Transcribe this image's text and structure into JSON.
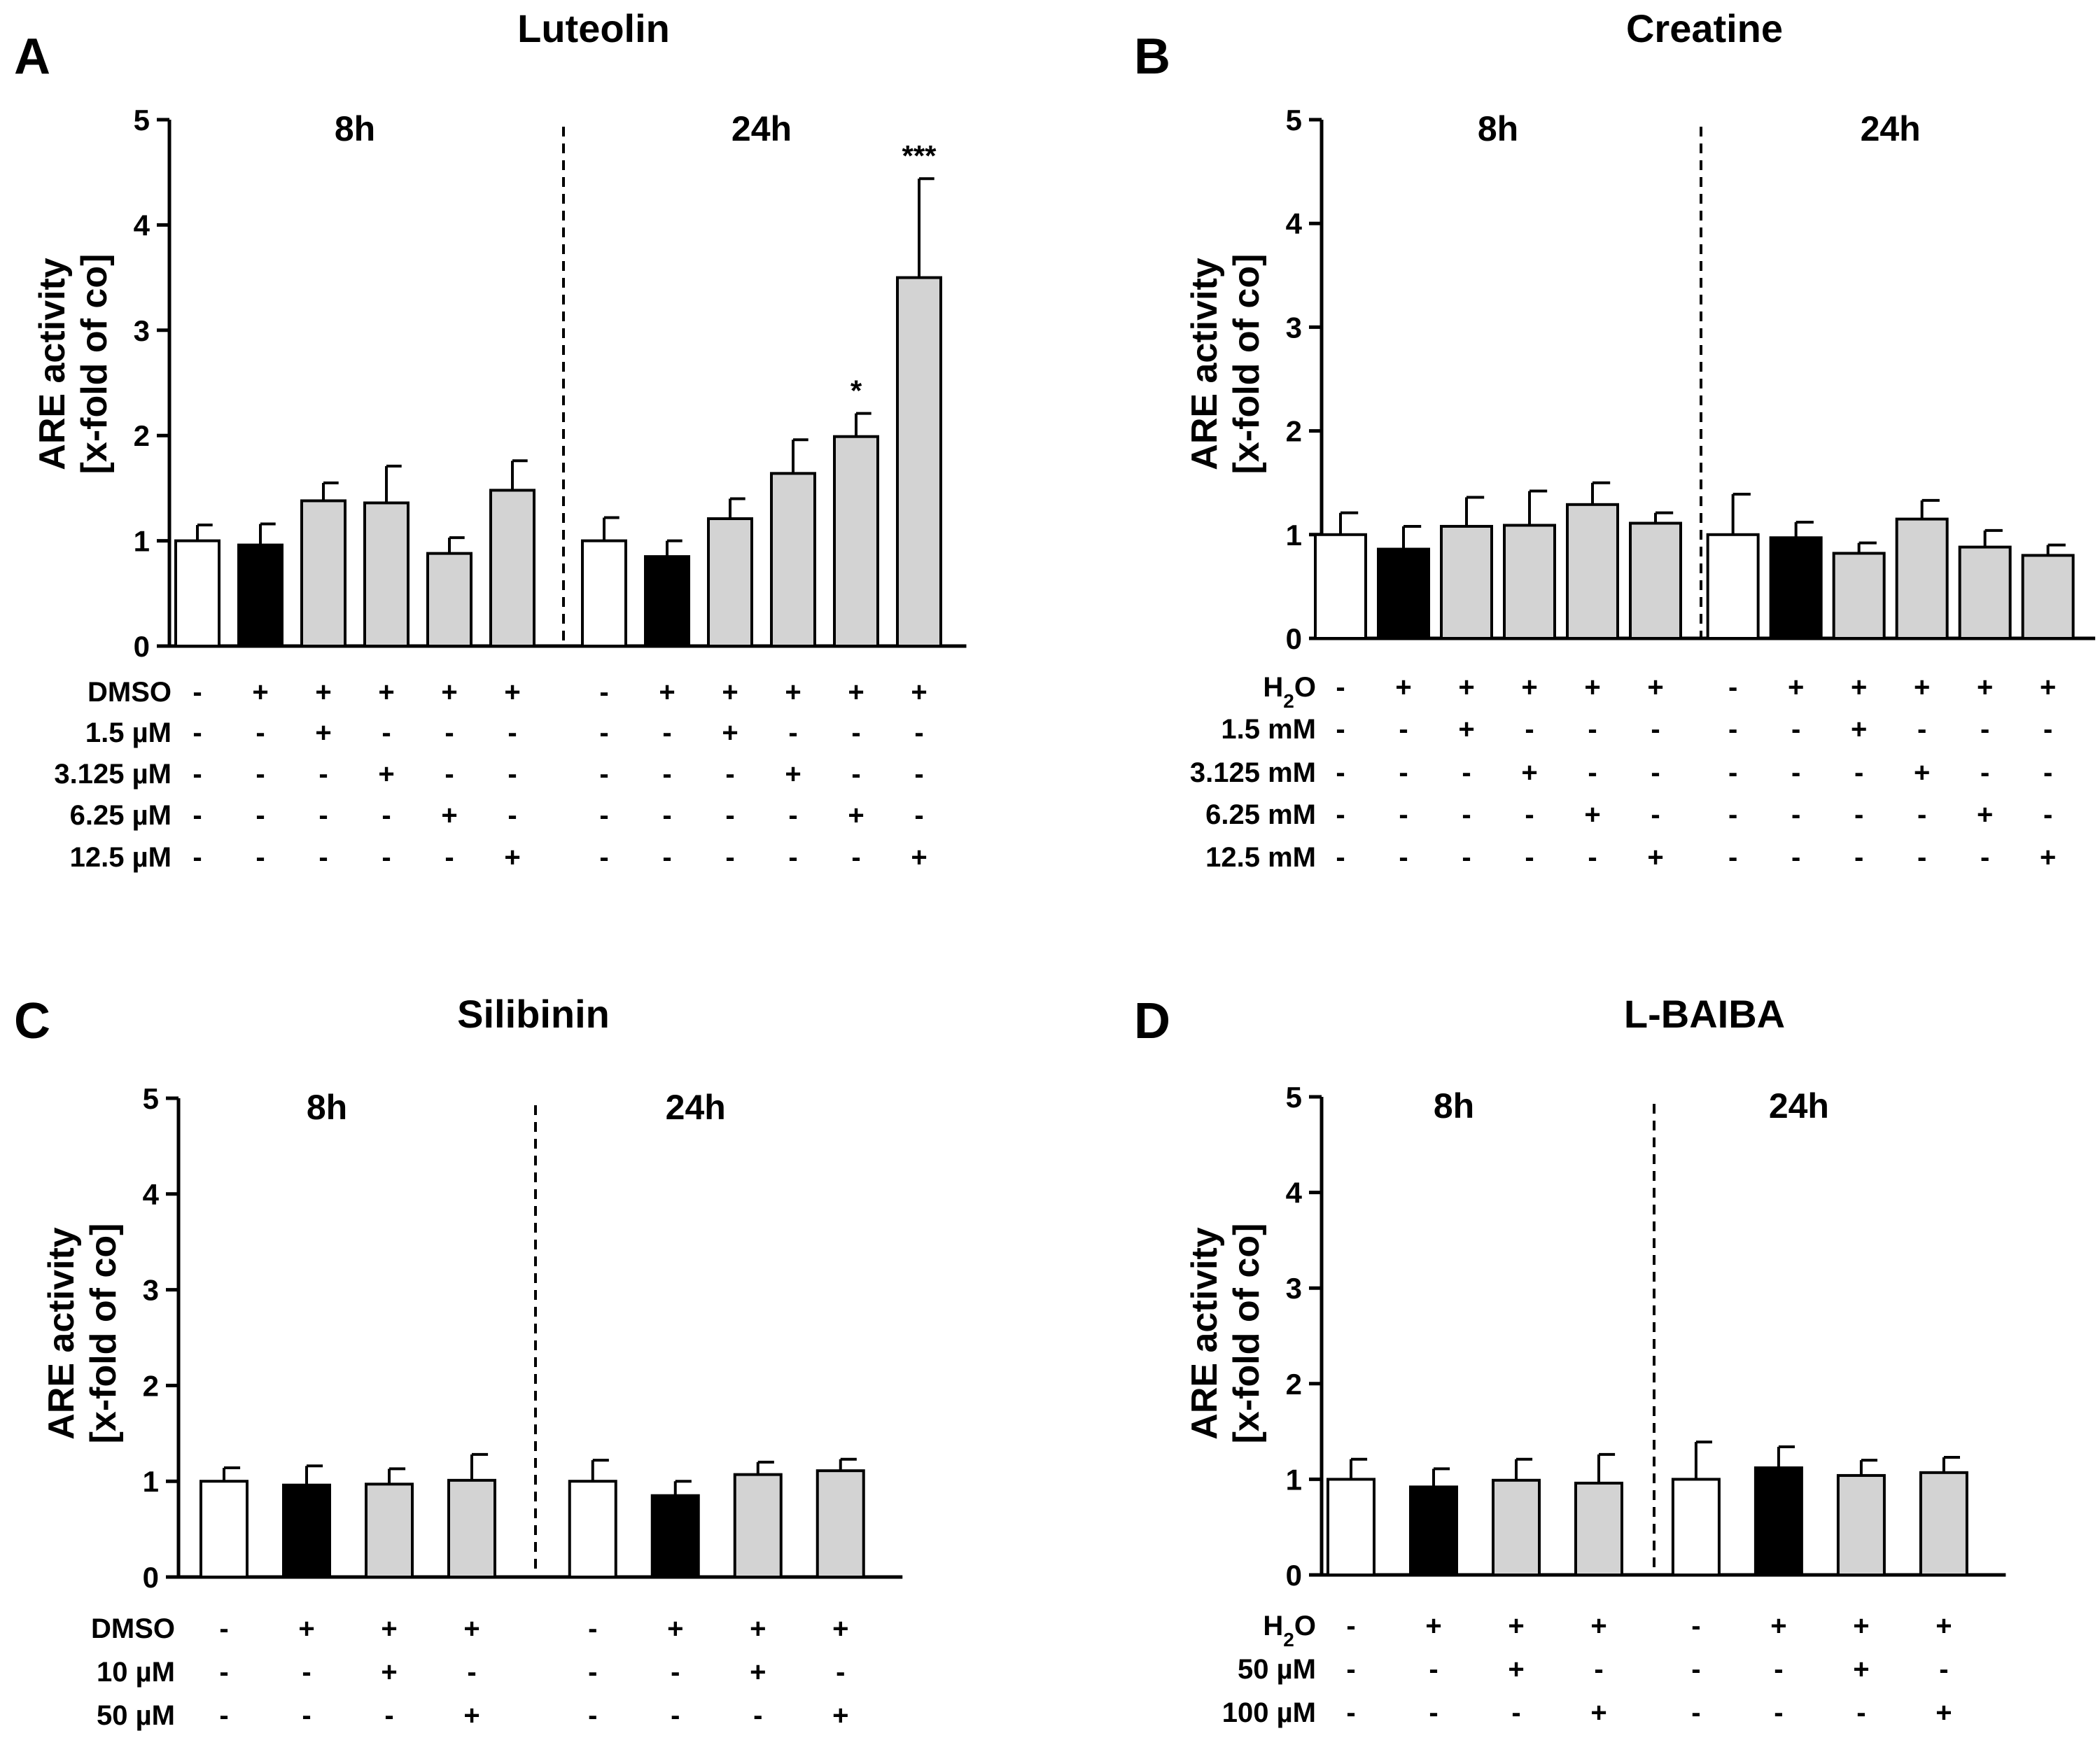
{
  "colors": {
    "control": "#ffffff",
    "vehicle": "#000000",
    "treatment": "#d3d3d3",
    "axis": "#000000"
  },
  "chart_data": [
    {
      "type": "bar",
      "panel_label": "A",
      "title": "Luteolin",
      "ylabel_line1": "ARE activity",
      "ylabel_line2": "[x-fold of co]",
      "ylim": [
        0,
        5
      ],
      "yticks": [
        "0",
        "1",
        "2",
        "3",
        "4",
        "5"
      ],
      "time_labels": [
        "8h",
        "24h"
      ],
      "bar_kinds": [
        "control",
        "vehicle",
        "treatment",
        "treatment",
        "treatment",
        "treatment"
      ],
      "series": [
        {
          "name": "8h",
          "values": [
            1.0,
            0.96,
            1.38,
            1.36,
            0.88,
            1.48
          ],
          "errors": [
            0.15,
            0.2,
            0.17,
            0.35,
            0.15,
            0.28
          ],
          "significance": [
            "",
            "",
            "",
            "",
            "",
            ""
          ]
        },
        {
          "name": "24h",
          "values": [
            1.0,
            0.85,
            1.21,
            1.64,
            1.99,
            3.5
          ],
          "errors": [
            0.22,
            0.15,
            0.19,
            0.32,
            0.22,
            0.94
          ],
          "significance": [
            "",
            "",
            "",
            "",
            "*",
            "***"
          ]
        }
      ],
      "conditions": [
        {
          "label": "DMSO",
          "signs": [
            "-",
            "+",
            "+",
            "+",
            "+",
            "+"
          ]
        },
        {
          "label": "1.5 µM",
          "signs": [
            "-",
            "-",
            "+",
            "-",
            "-",
            "-"
          ]
        },
        {
          "label": "3.125 µM",
          "signs": [
            "-",
            "-",
            "-",
            "+",
            "-",
            "-"
          ]
        },
        {
          "label": "6.25 µM",
          "signs": [
            "-",
            "-",
            "-",
            "-",
            "+",
            "-"
          ]
        },
        {
          "label": "12.5 µM",
          "signs": [
            "-",
            "-",
            "-",
            "-",
            "-",
            "+"
          ]
        }
      ]
    },
    {
      "type": "bar",
      "panel_label": "B",
      "title": "Creatine",
      "ylabel_line1": "ARE activity",
      "ylabel_line2": "[x-fold of co]",
      "ylim": [
        0,
        5
      ],
      "yticks": [
        "0",
        "1",
        "2",
        "3",
        "4",
        "5"
      ],
      "time_labels": [
        "8h",
        "24h"
      ],
      "bar_kinds": [
        "control",
        "vehicle",
        "treatment",
        "treatment",
        "treatment",
        "treatment"
      ],
      "series": [
        {
          "name": "8h",
          "values": [
            1.0,
            0.86,
            1.08,
            1.09,
            1.29,
            1.11
          ],
          "errors": [
            0.21,
            0.22,
            0.28,
            0.33,
            0.21,
            0.1
          ],
          "significance": [
            "",
            "",
            "",
            "",
            "",
            ""
          ]
        },
        {
          "name": "24h",
          "values": [
            1.0,
            0.97,
            0.82,
            1.15,
            0.88,
            0.8
          ],
          "errors": [
            0.39,
            0.15,
            0.1,
            0.18,
            0.16,
            0.1
          ],
          "significance": [
            "",
            "",
            "",
            "",
            "",
            ""
          ]
        }
      ],
      "conditions": [
        {
          "label": "H2O",
          "signs": [
            "-",
            "+",
            "+",
            "+",
            "+",
            "+"
          ]
        },
        {
          "label": "1.5 mM",
          "signs": [
            "-",
            "-",
            "+",
            "-",
            "-",
            "-"
          ]
        },
        {
          "label": "3.125 mM",
          "signs": [
            "-",
            "-",
            "-",
            "+",
            "-",
            "-"
          ]
        },
        {
          "label": "6.25 mM",
          "signs": [
            "-",
            "-",
            "-",
            "-",
            "+",
            "-"
          ]
        },
        {
          "label": "12.5 mM",
          "signs": [
            "-",
            "-",
            "-",
            "-",
            "-",
            "+"
          ]
        }
      ]
    },
    {
      "type": "bar",
      "panel_label": "C",
      "title": "Silibinin",
      "ylabel_line1": "ARE activity",
      "ylabel_line2": "[x-fold of co]",
      "ylim": [
        0,
        5
      ],
      "yticks": [
        "0",
        "1",
        "2",
        "3",
        "4",
        "5"
      ],
      "time_labels": [
        "8h",
        "24h"
      ],
      "bar_kinds": [
        "control",
        "vehicle",
        "treatment",
        "treatment"
      ],
      "series": [
        {
          "name": "8h",
          "values": [
            1.0,
            0.96,
            0.97,
            1.01
          ],
          "errors": [
            0.14,
            0.2,
            0.16,
            0.27
          ],
          "significance": [
            "",
            "",
            "",
            ""
          ]
        },
        {
          "name": "24h",
          "values": [
            1.0,
            0.85,
            1.07,
            1.11
          ],
          "errors": [
            0.22,
            0.15,
            0.13,
            0.12
          ],
          "significance": [
            "",
            "",
            "",
            ""
          ]
        }
      ],
      "conditions": [
        {
          "label": "DMSO",
          "signs": [
            "-",
            "+",
            "+",
            "+"
          ]
        },
        {
          "label": "10 µM",
          "signs": [
            "-",
            "-",
            "+",
            "-"
          ]
        },
        {
          "label": "50 µM",
          "signs": [
            "-",
            "-",
            "-",
            "+"
          ]
        }
      ]
    },
    {
      "type": "bar",
      "panel_label": "D",
      "title": "L-BAIBA",
      "ylabel_line1": "ARE activity",
      "ylabel_line2": "[x-fold of co]",
      "ylim": [
        0,
        5
      ],
      "yticks": [
        "0",
        "1",
        "2",
        "3",
        "4",
        "5"
      ],
      "time_labels": [
        "8h",
        "24h"
      ],
      "bar_kinds": [
        "control",
        "vehicle",
        "treatment",
        "treatment"
      ],
      "series": [
        {
          "name": "8h",
          "values": [
            1.0,
            0.92,
            0.99,
            0.96
          ],
          "errors": [
            0.21,
            0.19,
            0.22,
            0.3
          ],
          "significance": [
            "",
            "",
            "",
            ""
          ]
        },
        {
          "name": "24h",
          "values": [
            1.0,
            1.12,
            1.04,
            1.07
          ],
          "errors": [
            0.39,
            0.22,
            0.16,
            0.16
          ],
          "significance": [
            "",
            "",
            "",
            ""
          ]
        }
      ],
      "conditions": [
        {
          "label": "H2O",
          "signs": [
            "-",
            "+",
            "+",
            "+"
          ]
        },
        {
          "label": "50 µM",
          "signs": [
            "-",
            "-",
            "+",
            "-"
          ]
        },
        {
          "label": "100 µM",
          "signs": [
            "-",
            "-",
            "-",
            "+"
          ]
        }
      ]
    }
  ]
}
